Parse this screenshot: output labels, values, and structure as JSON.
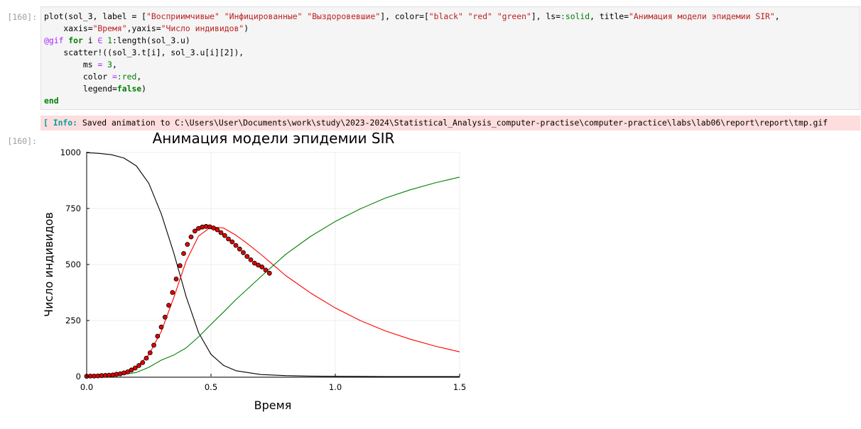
{
  "cell_code": {
    "prompt": "[160]:",
    "line1": {
      "a": "plot(sol_3, label = [",
      "s1": "\"Восприимчивые\"",
      "s2": "\"Инфицированные\"",
      "s3": "\"Выздоровевшие\"",
      "b": "], color=[",
      "s4": "\"black\"",
      "s5": "\"red\"",
      "s6": "\"green\"",
      "c": "], ls=",
      "sym": ":solid",
      "d": ", title=",
      "s7": "\"Анимация модели эпидемии SIR\"",
      "e": ","
    },
    "line2": {
      "a": "    xaxis=",
      "s1": "\"Время\"",
      "b": ",yaxis=",
      "s2": "\"Число индивидов\"",
      "c": ")"
    },
    "line3": {
      "macro": "@gif",
      "kw_for": "for",
      "a": " i ",
      "in": "∈",
      "num": "1",
      "b": ":length(sol_3.u)"
    },
    "line4": "    scatter!((sol_3.t[i], sol_3.u[i][2]),",
    "line5": {
      "a": "        ms ",
      "eq": "=",
      "num": "3",
      "b": ","
    },
    "line6": {
      "a": "        color ",
      "eq": "=",
      "sym": ":red",
      "b": ","
    },
    "line7": {
      "a": "        legend=",
      "kw": "false",
      "b": ")"
    },
    "line8": "end"
  },
  "info": {
    "tag": "[ Info:",
    "message": " Saved animation to C:\\Users\\User\\Documents\\work\\study\\2023-2024\\Statistical_Analysis_computer-practise\\computer-practice\\labs\\lab06\\report\\report\\tmp.gif"
  },
  "output_prompt": "[160]:",
  "chart_data": {
    "type": "line",
    "title": "Анимация модели эпидемии SIR",
    "xlabel": "Время",
    "ylabel": "Число индивидов",
    "xlim": [
      0,
      1.5
    ],
    "ylim": [
      0,
      1000
    ],
    "xticks": [
      0.0,
      0.5,
      1.0,
      1.5
    ],
    "xtick_labels": [
      "0.0",
      "0.5",
      "1.0",
      "1.5"
    ],
    "yticks": [
      0,
      250,
      500,
      750,
      1000
    ],
    "ytick_labels": [
      "0",
      "250",
      "500",
      "750",
      "1000"
    ],
    "grid": true,
    "legend": false,
    "series": [
      {
        "color": "#000000",
        "x": [
          0,
          0.05,
          0.1,
          0.15,
          0.2,
          0.25,
          0.3,
          0.35,
          0.4,
          0.45,
          0.5,
          0.55,
          0.6,
          0.7,
          0.8,
          0.9,
          1.0,
          1.2,
          1.5
        ],
        "y": [
          999,
          996,
          990,
          975,
          940,
          862,
          726,
          553,
          357,
          196,
          99,
          50,
          26,
          9,
          4,
          2,
          1,
          0,
          0
        ]
      },
      {
        "color": "#ff0000",
        "x": [
          0,
          0.05,
          0.1,
          0.15,
          0.2,
          0.25,
          0.3,
          0.35,
          0.4,
          0.45,
          0.5,
          0.55,
          0.6,
          0.65,
          0.7,
          0.8,
          0.9,
          1.0,
          1.1,
          1.2,
          1.3,
          1.4,
          1.5
        ],
        "y": [
          1,
          3,
          8,
          18,
          42,
          97,
          201,
          351,
          515,
          627,
          668,
          663,
          631,
          590,
          546,
          451,
          373,
          306,
          250,
          204,
          167,
          136,
          110
        ]
      },
      {
        "color": "#008000",
        "x": [
          0,
          0.1,
          0.2,
          0.25,
          0.3,
          0.35,
          0.4,
          0.45,
          0.5,
          0.55,
          0.6,
          0.7,
          0.8,
          0.9,
          1.0,
          1.1,
          1.2,
          1.3,
          1.4,
          1.5
        ],
        "y": [
          0,
          2,
          18,
          41,
          73,
          96,
          128,
          177,
          233,
          287,
          343,
          445,
          545,
          625,
          692,
          748,
          796,
          833,
          864,
          890
        ]
      }
    ],
    "markers": {
      "color": "#e00000",
      "x": [
        0.0,
        0.015,
        0.03,
        0.045,
        0.06,
        0.075,
        0.09,
        0.105,
        0.12,
        0.135,
        0.15,
        0.165,
        0.18,
        0.195,
        0.21,
        0.225,
        0.24,
        0.255,
        0.27,
        0.285,
        0.3,
        0.315,
        0.33,
        0.345,
        0.36,
        0.375,
        0.39,
        0.405,
        0.42,
        0.435,
        0.45,
        0.465,
        0.48,
        0.495,
        0.51,
        0.525,
        0.54,
        0.555,
        0.57,
        0.585,
        0.6,
        0.615,
        0.63,
        0.645,
        0.66,
        0.675,
        0.69,
        0.705,
        0.72,
        0.735
      ],
      "y": [
        1,
        2,
        2,
        3,
        4,
        5,
        6,
        7,
        10,
        12,
        16,
        21,
        29,
        38,
        49,
        62,
        82,
        106,
        140,
        180,
        221,
        265,
        318,
        375,
        435,
        495,
        549,
        590,
        623,
        649,
        661,
        667,
        670,
        668,
        663,
        655,
        642,
        629,
        614,
        601,
        585,
        569,
        553,
        536,
        521,
        506,
        497,
        489,
        475,
        461
      ]
    }
  }
}
